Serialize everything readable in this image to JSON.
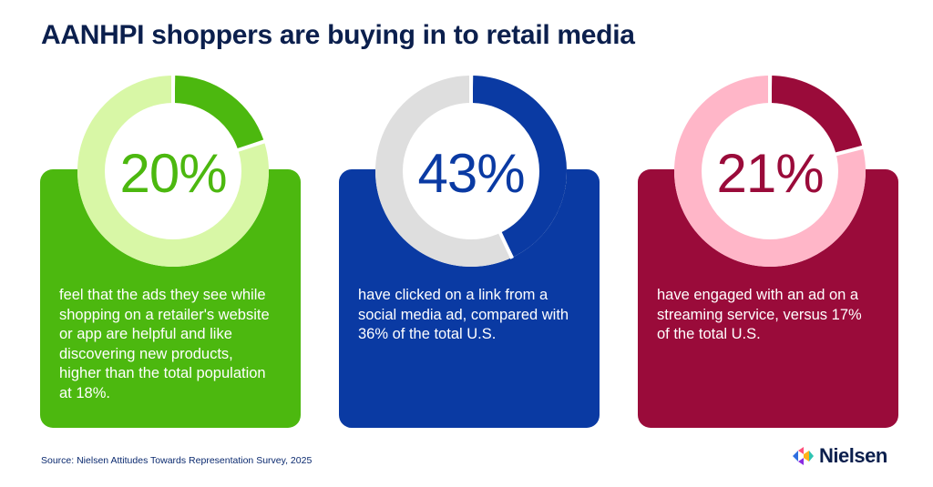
{
  "title": "AANHPI shoppers are buying in to retail media",
  "source": "Source: Nielsen Attitudes Towards Representation Survey, 2025",
  "logo_text": "Nielsen",
  "chart_data": [
    {
      "type": "pie",
      "value": 20,
      "label": "20%",
      "description": "feel that the ads they see while shopping on a retailer's website or app are helpful and like discovering new products, higher than the total population at 18%.",
      "colors": {
        "card": "#4cb80f",
        "ring_fill": "#4cb80f",
        "ring_track": "#d8f7a6",
        "label": "#4cb80f"
      }
    },
    {
      "type": "pie",
      "value": 43,
      "label": "43%",
      "description": "have clicked on a link from a social media ad, compared with 36% of the total U.S.",
      "colors": {
        "card": "#0a3aa3",
        "ring_fill": "#0a3aa3",
        "ring_track": "#dedede",
        "label": "#0a3aa3"
      }
    },
    {
      "type": "pie",
      "value": 21,
      "label": "21%",
      "description": "have engaged with an ad on a streaming service, versus 17% of the total U.S.",
      "colors": {
        "card": "#9a0b3a",
        "ring_fill": "#9a0b3a",
        "ring_track": "#ffb6c8",
        "label": "#9a0b3a"
      }
    }
  ]
}
